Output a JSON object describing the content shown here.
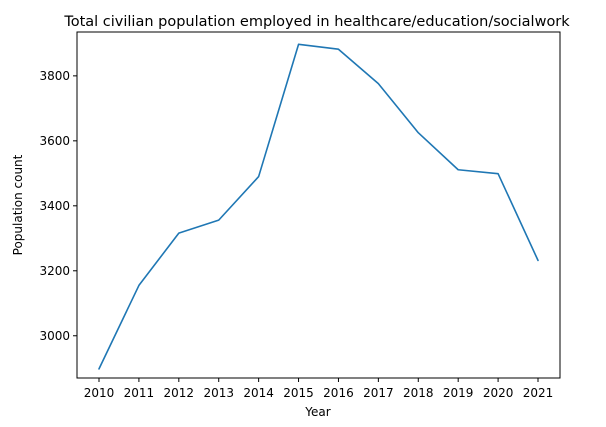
{
  "chart_data": {
    "type": "line",
    "title": "Total civilian population employed in healthcare/education/socialwork",
    "xlabel": "Year",
    "ylabel": "Population count",
    "x": [
      "2010",
      "2011",
      "2012",
      "2013",
      "2014",
      "2015",
      "2016",
      "2017",
      "2018",
      "2019",
      "2020",
      "2021"
    ],
    "series": [
      {
        "values": [
          2898,
          3155,
          3316,
          3356,
          3490,
          3897,
          3882,
          3776,
          3625,
          3511,
          3499,
          3232
        ]
      }
    ],
    "yticks": [
      3000,
      3200,
      3400,
      3600,
      3800
    ],
    "ylim": [
      2870,
      3935
    ],
    "grid": false,
    "colors": {
      "line": "#1f77b4"
    }
  }
}
